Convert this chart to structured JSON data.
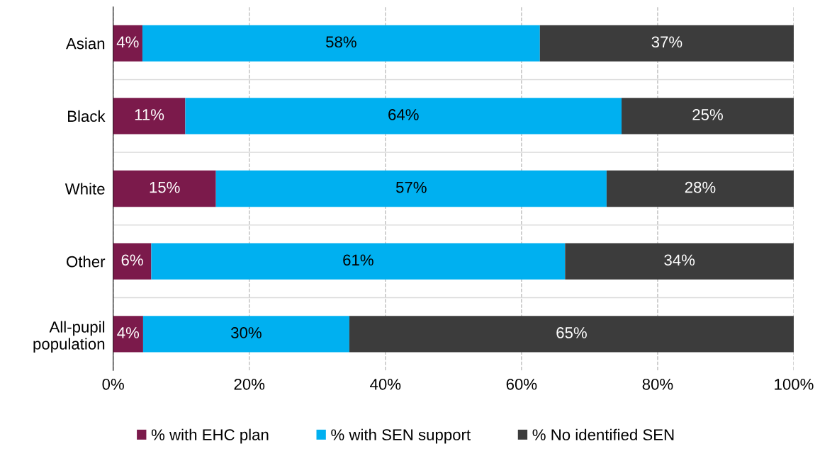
{
  "chart_data": {
    "type": "bar",
    "orientation": "horizontal",
    "stacked": true,
    "categories": [
      "Asian",
      "Black",
      "White",
      "Other",
      "All-pupil\npopulation"
    ],
    "series": [
      {
        "name": "% with EHC plan",
        "color": "#7b1a4b",
        "values": [
          4.3,
          10.6,
          15.1,
          5.6,
          4.4
        ],
        "value_labels": [
          "4%",
          "11%",
          "15%",
          "6%",
          "4%"
        ]
      },
      {
        "name": "% with SEN support",
        "color": "#00b0f0",
        "values": [
          58.4,
          64.1,
          57.4,
          60.8,
          30.3
        ],
        "value_labels": [
          "58%",
          "64%",
          "57%",
          "61%",
          "30%"
        ]
      },
      {
        "name": "% No identified SEN",
        "color": "#3c3c3c",
        "values": [
          37.3,
          25.3,
          27.5,
          33.6,
          65.3
        ],
        "value_labels": [
          "37%",
          "25%",
          "28%",
          "34%",
          "65%"
        ]
      }
    ],
    "xlim": [
      0,
      100
    ],
    "xticks": [
      {
        "value": 0,
        "label": "0%"
      },
      {
        "value": 20,
        "label": "20%"
      },
      {
        "value": 40,
        "label": "40%"
      },
      {
        "value": 60,
        "label": "60%"
      },
      {
        "value": 80,
        "label": "80%"
      },
      {
        "value": 100,
        "label": "100%"
      }
    ],
    "grid": "x",
    "legend": "bottom"
  }
}
